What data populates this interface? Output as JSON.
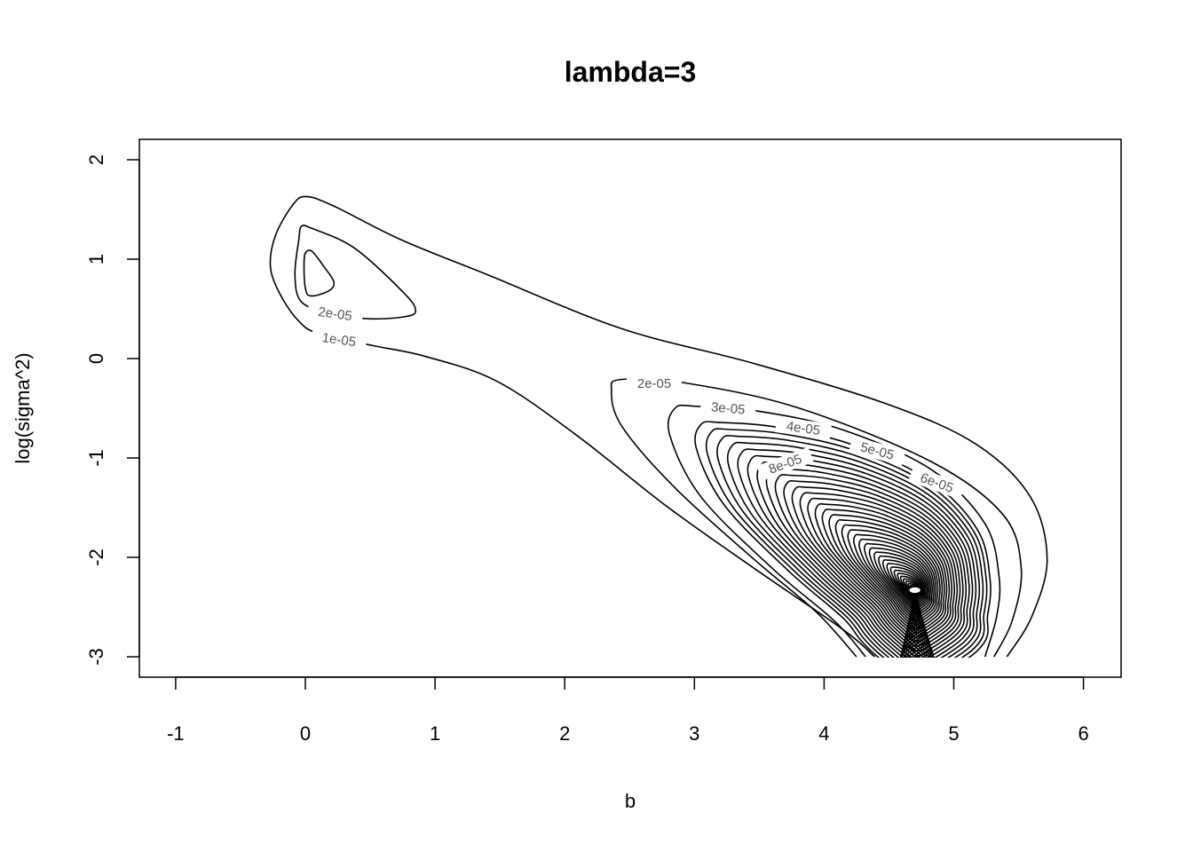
{
  "chart_data": {
    "type": "contour",
    "title": "lambda=3",
    "xlabel": "b",
    "ylabel": "log(sigma^2)",
    "xlim": [
      -1.3,
      6.3
    ],
    "ylim": [
      -3.2,
      2.2
    ],
    "xticks": [
      "-1",
      "0",
      "1",
      "2",
      "3",
      "4",
      "5",
      "6"
    ],
    "yticks": [
      "-3",
      "-2",
      "-1",
      "0",
      "1",
      "2"
    ],
    "grid": false,
    "line_color": "#000000",
    "label_color": "#555555",
    "peak": [
      4.7,
      -2.33
    ],
    "contours": [
      {
        "level": "1e-05",
        "points": [
          [
            5.41,
            -3
          ],
          [
            5.6,
            -2.6
          ],
          [
            5.72,
            -2.02
          ],
          [
            5.59,
            -1.39
          ],
          [
            5.17,
            -0.86
          ],
          [
            4.49,
            -0.46
          ],
          [
            3.46,
            -0.05
          ],
          [
            2.44,
            0.3
          ],
          [
            1.41,
            0.84
          ],
          [
            0.73,
            1.2
          ],
          [
            0.21,
            1.54
          ],
          [
            0.0,
            1.63
          ],
          [
            -0.1,
            1.54
          ],
          [
            -0.23,
            1.24
          ],
          [
            -0.27,
            0.93
          ],
          [
            -0.2,
            0.66
          ],
          [
            -0.06,
            0.39
          ],
          [
            0.1,
            0.25
          ],
          [
            0.52,
            0.13
          ],
          [
            0.93,
            0.02
          ],
          [
            1.48,
            -0.23
          ],
          [
            2.09,
            -0.77
          ],
          [
            2.78,
            -1.48
          ],
          [
            3.46,
            -2.11
          ],
          [
            4.15,
            -2.73
          ],
          [
            4.39,
            -3
          ]
        ],
        "closed": false
      },
      {
        "level": "2e-05",
        "points": [
          [
            -0.03,
            1.33
          ],
          [
            0.05,
            1.31
          ],
          [
            0.38,
            1.11
          ],
          [
            0.76,
            0.66
          ],
          [
            0.85,
            0.48
          ],
          [
            0.76,
            0.42
          ],
          [
            0.49,
            0.4
          ],
          [
            0.2,
            0.45
          ],
          [
            -0.03,
            0.57
          ],
          [
            -0.08,
            0.84
          ],
          [
            -0.05,
            1.2
          ]
        ],
        "closed": true
      },
      {
        "level": "3e-05",
        "points": [
          [
            0.0,
            1.06
          ],
          [
            0.05,
            1.08
          ],
          [
            0.14,
            0.93
          ],
          [
            0.22,
            0.77
          ],
          [
            0.18,
            0.68
          ],
          [
            0.04,
            0.63
          ],
          [
            0.0,
            0.71
          ],
          [
            -0.01,
            0.93
          ]
        ],
        "closed": true
      },
      {
        "level": "2e-05",
        "points": [
          [
            5.31,
            -3
          ],
          [
            5.45,
            -2.64
          ],
          [
            5.52,
            -2.11
          ],
          [
            5.38,
            -1.57
          ],
          [
            4.83,
            -1.04
          ],
          [
            3.81,
            -0.5
          ],
          [
            2.95,
            -0.25
          ],
          [
            2.44,
            -0.21
          ],
          [
            2.36,
            -0.32
          ],
          [
            2.44,
            -0.68
          ],
          [
            2.85,
            -1.3
          ],
          [
            3.46,
            -2.02
          ],
          [
            3.94,
            -2.55
          ],
          [
            4.25,
            -3
          ]
        ],
        "closed": false
      },
      {
        "level": "3e-05",
        "points": [
          [
            5.24,
            -3
          ],
          [
            5.33,
            -2.6
          ],
          [
            5.35,
            -2.2
          ],
          [
            5.24,
            -1.66
          ],
          [
            4.83,
            -1.12
          ],
          [
            4.15,
            -0.72
          ],
          [
            3.5,
            -0.53
          ],
          [
            3.02,
            -0.48
          ],
          [
            2.85,
            -0.5
          ],
          [
            2.81,
            -0.77
          ],
          [
            3.05,
            -1.39
          ],
          [
            3.6,
            -2.11
          ],
          [
            4.08,
            -2.64
          ],
          [
            4.32,
            -3
          ]
        ],
        "closed": false
      }
    ],
    "inner_levels_from": "4e-05",
    "inner_levels_step": "1e-05",
    "inner_level_count": 38,
    "labels": [
      {
        "text": "2e-05",
        "at": [
          0.23,
          0.45
        ],
        "angle": 8
      },
      {
        "text": "1e-05",
        "at": [
          0.26,
          0.19
        ],
        "angle": 8
      },
      {
        "text": "2e-05",
        "at": [
          2.69,
          -0.25
        ],
        "angle": 0
      },
      {
        "text": "3e-05",
        "at": [
          3.26,
          -0.5
        ],
        "angle": 5
      },
      {
        "text": "4e-05",
        "at": [
          3.84,
          -0.7
        ],
        "angle": 8
      },
      {
        "text": "5e-05",
        "at": [
          4.41,
          -0.93
        ],
        "angle": 15
      },
      {
        "text": "6e-05",
        "at": [
          4.87,
          -1.25
        ],
        "angle": 20
      },
      {
        "text": "8e-05",
        "at": [
          3.7,
          -1.06
        ],
        "angle": -20
      }
    ]
  }
}
